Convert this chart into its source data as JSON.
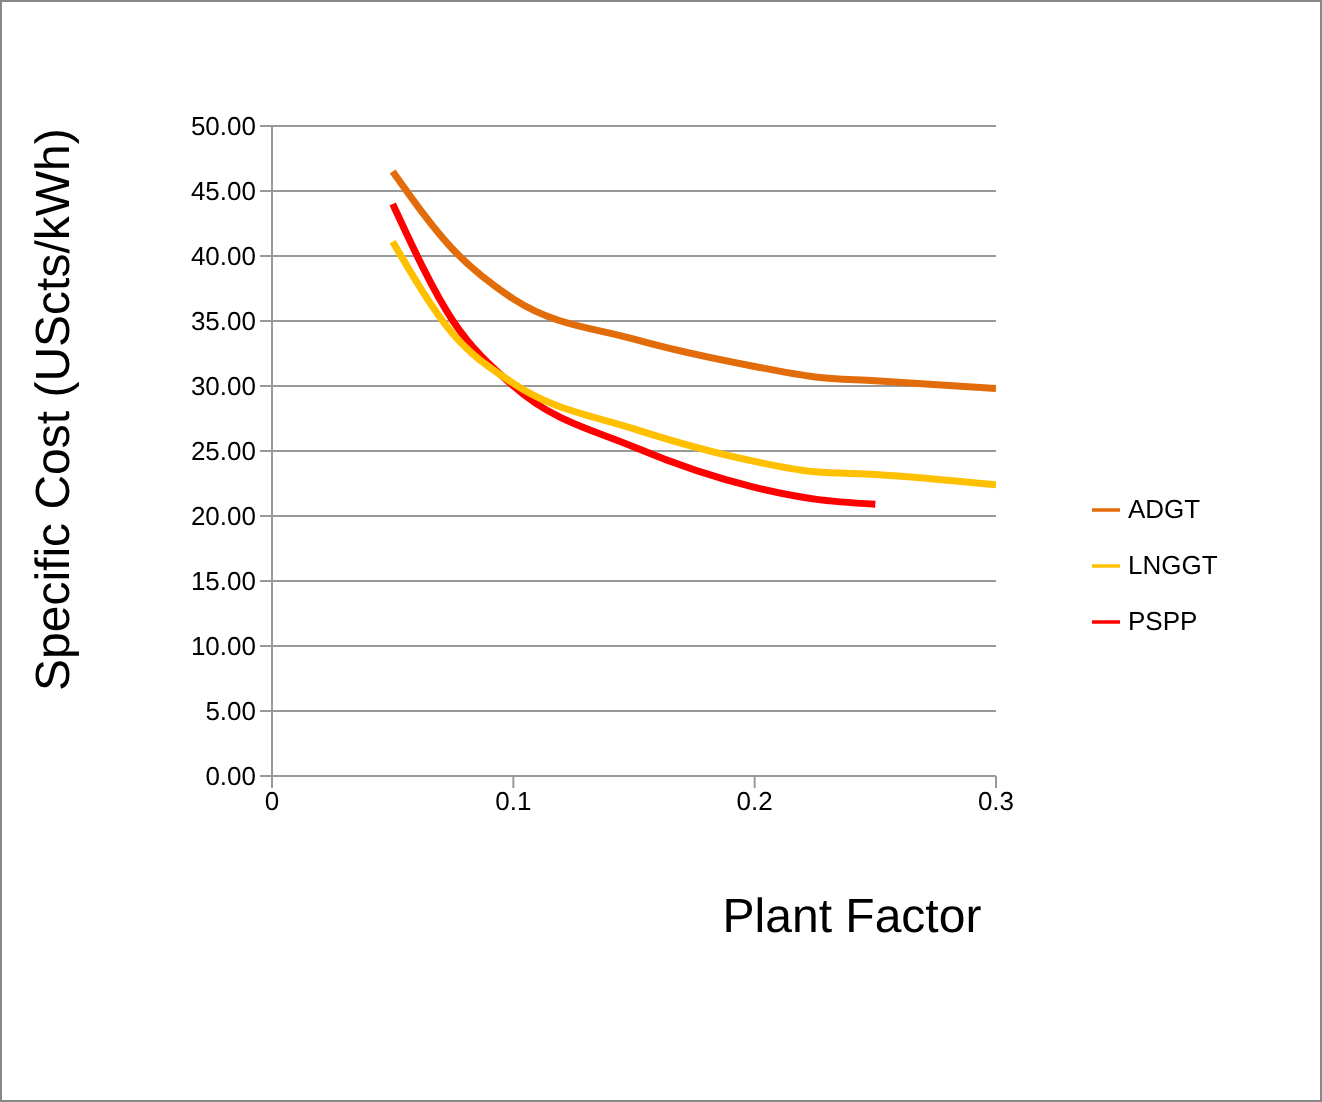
{
  "chart_data": {
    "type": "line",
    "xlabel": "Plant Factor",
    "ylabel": "Specific Cost (UScts/kWh)",
    "x": [
      0.05,
      0.075,
      0.1,
      0.15,
      0.2,
      0.225,
      0.25,
      0.3
    ],
    "series": [
      {
        "name": "PSPP",
        "color": "#ff0000",
        "values": [
          44,
          35,
          30,
          25.3,
          22.2,
          21.3,
          20.9,
          null
        ]
      },
      {
        "name": "ADGT",
        "color": "#e36c0a",
        "values": [
          46.5,
          40.5,
          36.7,
          33.6,
          31.5,
          30.7,
          30.4,
          29.8
        ]
      },
      {
        "name": "LNGGT",
        "color": "#ffc000",
        "values": [
          41.1,
          34,
          30.2,
          26.7,
          24.2,
          23.4,
          23.2,
          22.4
        ]
      }
    ],
    "xlim": [
      0,
      0.3
    ],
    "xticks": [
      0,
      0.1,
      0.2,
      0.3
    ],
    "ylim": [
      0,
      50
    ],
    "yticks": [
      {
        "value": 0,
        "label": "0.00"
      },
      {
        "value": 5,
        "label": "5.00"
      },
      {
        "value": 10,
        "label": "10.00"
      },
      {
        "value": 15,
        "label": "15.00"
      },
      {
        "value": 20,
        "label": "20.00"
      },
      {
        "value": 25,
        "label": "25.00"
      },
      {
        "value": 30,
        "label": "30.00"
      },
      {
        "value": 35,
        "label": "35.00"
      },
      {
        "value": 40,
        "label": "40.00"
      },
      {
        "value": 45,
        "label": "45.00"
      },
      {
        "value": 50,
        "label": "50.00"
      }
    ],
    "grid": "y",
    "legend": "right",
    "marker": "none",
    "line_style": "solid"
  }
}
